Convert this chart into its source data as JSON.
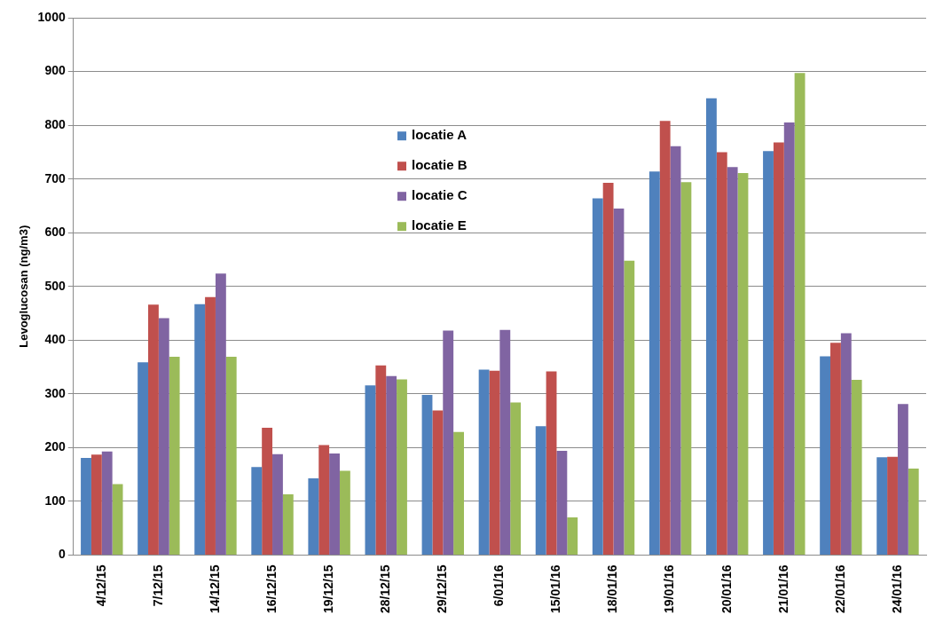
{
  "chart_data": {
    "type": "bar",
    "ylabel": "Levoglucosan (ng/m3)",
    "categories": [
      "4/12/15",
      "7/12/15",
      "14/12/15",
      "16/12/15",
      "19/12/15",
      "28/12/15",
      "29/12/15",
      "6/01/16",
      "15/01/16",
      "18/01/16",
      "19/01/16",
      "20/01/16",
      "21/01/16",
      "22/01/16",
      "24/01/16"
    ],
    "series": [
      {
        "name": "locatie A",
        "color": "#4f81bd",
        "values": [
          181,
          359,
          467,
          164,
          143,
          316,
          298,
          345,
          240,
          664,
          714,
          850,
          752,
          370,
          182
        ]
      },
      {
        "name": "locatie B",
        "color": "#c0504d",
        "values": [
          187,
          466,
          480,
          237,
          205,
          353,
          269,
          343,
          342,
          693,
          808,
          750,
          768,
          395,
          183
        ]
      },
      {
        "name": "locatie C",
        "color": "#8064a2",
        "values": [
          193,
          441,
          524,
          188,
          189,
          333,
          418,
          419,
          194,
          645,
          761,
          722,
          805,
          413,
          281
        ]
      },
      {
        "name": "locatie E",
        "color": "#9bbb59",
        "values": [
          132,
          369,
          369,
          113,
          157,
          327,
          229,
          284,
          70,
          548,
          694,
          711,
          897,
          326,
          161
        ]
      }
    ],
    "ylim": [
      0,
      1000
    ],
    "yticks": [
      0,
      100,
      200,
      300,
      400,
      500,
      600,
      700,
      800,
      900,
      1000
    ],
    "grid": "y",
    "legend": "top"
  }
}
